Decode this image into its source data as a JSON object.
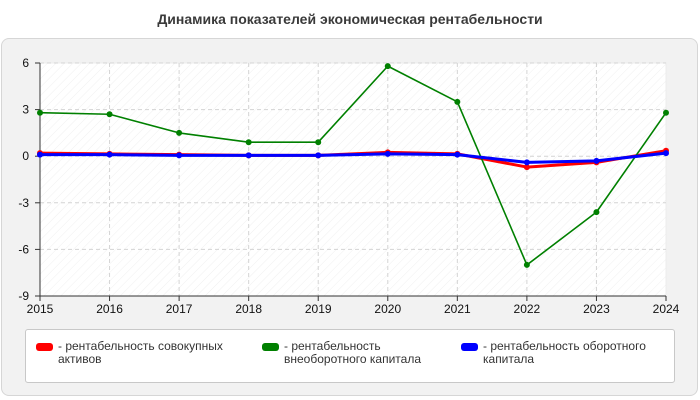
{
  "chart_data": {
    "type": "line",
    "title": "Динамика показателей экономическая рентабельности",
    "xlabel": "",
    "ylabel": "",
    "categories": [
      "2015",
      "2016",
      "2017",
      "2018",
      "2019",
      "2020",
      "2021",
      "2022",
      "2023",
      "2024"
    ],
    "ylim": [
      -9,
      6
    ],
    "yticks": [
      "6",
      "3",
      "0",
      "-3",
      "-6",
      "-9"
    ],
    "grid": true,
    "legend_position": "bottom",
    "series": [
      {
        "name": "- рентабельность совокупных активов",
        "color": "#ff0000",
        "values": [
          0.2,
          0.15,
          0.1,
          0.05,
          0.05,
          0.25,
          0.15,
          -0.7,
          -0.4,
          0.35
        ]
      },
      {
        "name": "- рентабельность внеоборотного капитала",
        "color": "#008000",
        "values": [
          2.8,
          2.7,
          1.5,
          0.9,
          0.9,
          5.8,
          3.5,
          -7.0,
          -3.6,
          2.8
        ]
      },
      {
        "name": "- рентабельность оборотного капитала",
        "color": "#0000ff",
        "values": [
          0.1,
          0.1,
          0.05,
          0.05,
          0.05,
          0.15,
          0.1,
          -0.4,
          -0.3,
          0.2
        ]
      }
    ]
  }
}
